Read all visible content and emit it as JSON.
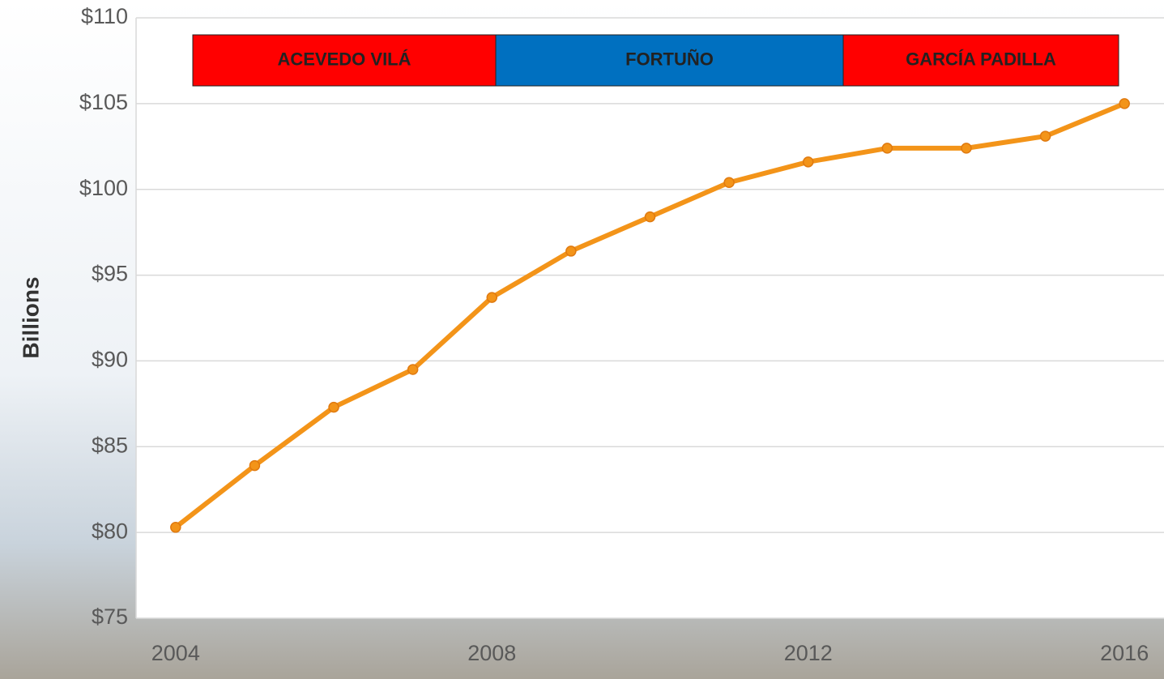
{
  "chart_data": {
    "type": "line",
    "y_label": "Billions",
    "x": [
      2004,
      2005,
      2006,
      2007,
      2008,
      2009,
      2010,
      2011,
      2012,
      2013,
      2014,
      2015,
      2016
    ],
    "values": [
      80.3,
      83.9,
      87.3,
      89.5,
      93.7,
      96.4,
      98.4,
      100.4,
      101.6,
      102.4,
      102.4,
      103.1,
      105.0
    ],
    "color": "#f39419",
    "xlim": [
      2003.5,
      2016.5
    ],
    "xticks": [
      2004,
      2008,
      2012,
      2016
    ],
    "ylim": [
      75,
      110
    ],
    "yticks": [
      {
        "value": 75,
        "label": "$75"
      },
      {
        "value": 80,
        "label": "$80"
      },
      {
        "value": 85,
        "label": "$85"
      },
      {
        "value": 90,
        "label": "$90"
      },
      {
        "value": 95,
        "label": "$95"
      },
      {
        "value": 100,
        "label": "$100"
      },
      {
        "value": 105,
        "label": "$105"
      },
      {
        "value": 110,
        "label": "$110"
      }
    ],
    "grid": true,
    "bands": [
      {
        "label": "ACEVEDO VILÁ",
        "color": "#ff0000"
      },
      {
        "label": "FORTUÑO",
        "color": "#0070c0"
      },
      {
        "label": "GARCÍA PADILLA",
        "color": "#ff0000"
      }
    ]
  }
}
